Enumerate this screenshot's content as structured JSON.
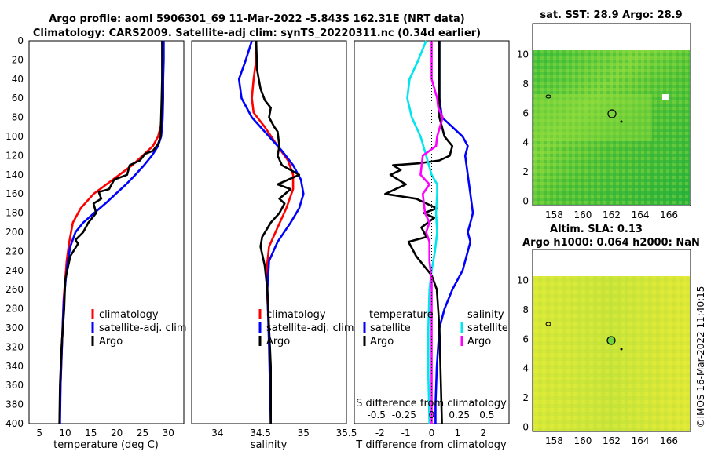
{
  "header": {
    "title_line1": "Argo profile: aoml 5906301_69 11-Mar-2022 -5.843S 162.31E (NRT data)",
    "title_line2": "Climatology: CARS2009. Satellite-adj clim: synTS_20220311.nc (0.34d earlier)",
    "timestamp": "©IMOS 16-Mar-2022 11:40:15"
  },
  "colors": {
    "climatology": "#ff0000",
    "satellite": "#0000ff",
    "argo": "#000000",
    "sal_satellite": "#00e5ee",
    "sal_argo": "#ff00ff"
  },
  "depth_axis": {
    "ylim": [
      0,
      400
    ],
    "ticks": [
      "0",
      "20",
      "40",
      "60",
      "80",
      "100",
      "120",
      "140",
      "160",
      "180",
      "200",
      "220",
      "240",
      "260",
      "280",
      "300",
      "320",
      "340",
      "360",
      "380",
      "400"
    ]
  },
  "chart_data": [
    {
      "type": "line",
      "id": "temperature",
      "xlabel": "temperature (deg C)",
      "xlim": [
        3,
        33
      ],
      "xticks": [
        "5",
        "10",
        "15",
        "20",
        "25",
        "30"
      ],
      "legend": [
        "climatology",
        "satellite-adj. clim",
        "Argo"
      ],
      "series": [
        {
          "name": "climatology",
          "x": [
            29.0,
            29.0,
            28.9,
            28.8,
            28.7,
            28.5,
            28.0,
            27.0,
            25.0,
            23.0,
            20.5,
            18.0,
            15.5,
            13.0,
            11.5,
            10.8,
            10.3,
            10.0,
            9.7,
            9.5,
            9.3,
            9.1,
            9.0,
            8.9
          ],
          "y": [
            0,
            20,
            40,
            60,
            80,
            90,
            100,
            110,
            120,
            130,
            140,
            150,
            160,
            175,
            190,
            210,
            230,
            250,
            270,
            300,
            330,
            360,
            380,
            400
          ]
        },
        {
          "name": "satellite-adj. clim",
          "x": [
            29.1,
            29.1,
            29.0,
            29.0,
            28.9,
            28.8,
            28.6,
            28.0,
            26.8,
            25.3,
            23.6,
            21.8,
            19.8,
            17.8,
            15.6,
            13.5,
            12.0,
            11.0,
            10.5,
            10.1,
            9.7,
            9.5,
            9.3,
            9.1,
            9.0
          ],
          "y": [
            0,
            20,
            40,
            60,
            80,
            90,
            100,
            110,
            120,
            130,
            140,
            150,
            160,
            170,
            180,
            190,
            200,
            215,
            230,
            250,
            275,
            300,
            330,
            360,
            400
          ]
        },
        {
          "name": "Argo",
          "x": [
            28.8,
            28.8,
            28.8,
            28.7,
            28.6,
            28.5,
            28.0,
            27.0,
            25.5,
            24.5,
            22.5,
            22.0,
            19.5,
            18.5,
            16.5,
            17.0,
            15.5,
            16.0,
            14.5,
            13.5,
            12.0,
            12.5,
            11.0,
            10.0,
            9.8,
            9.3,
            9.0,
            8.9
          ],
          "y": [
            0,
            20,
            40,
            60,
            80,
            100,
            108,
            115,
            118,
            125,
            130,
            140,
            145,
            155,
            158,
            165,
            170,
            180,
            190,
            200,
            208,
            212,
            225,
            250,
            280,
            320,
            360,
            400
          ]
        }
      ]
    },
    {
      "type": "line",
      "id": "salinity",
      "xlabel": "salinity",
      "xlim": [
        33.7,
        35.5
      ],
      "xticks": [
        "34",
        "34.5",
        "35",
        "35.5"
      ],
      "legend": [
        "climatology",
        "satellite-adj. clim",
        "Argo"
      ],
      "series": [
        {
          "name": "climatology",
          "x": [
            34.45,
            34.45,
            34.42,
            34.4,
            34.42,
            34.55,
            34.7,
            34.82,
            34.88,
            34.88,
            34.8,
            34.7,
            34.6,
            34.57,
            34.58,
            34.6,
            34.61,
            34.62,
            34.62
          ],
          "y": [
            0,
            20,
            40,
            60,
            75,
            90,
            110,
            125,
            140,
            155,
            175,
            195,
            215,
            240,
            270,
            300,
            330,
            360,
            400
          ]
        },
        {
          "name": "satellite-adj. clim",
          "x": [
            34.4,
            34.33,
            34.25,
            34.28,
            34.4,
            34.6,
            34.75,
            34.88,
            34.97,
            35.0,
            34.95,
            34.85,
            34.7,
            34.6,
            34.58,
            34.59,
            34.6,
            34.61,
            34.62
          ],
          "y": [
            0,
            20,
            40,
            60,
            80,
            100,
            115,
            130,
            145,
            160,
            175,
            190,
            210,
            230,
            260,
            290,
            320,
            360,
            400
          ]
        },
        {
          "name": "Argo",
          "x": [
            34.45,
            34.46,
            34.5,
            34.55,
            34.62,
            34.6,
            34.66,
            34.7,
            34.72,
            34.7,
            34.75,
            34.95,
            34.7,
            34.85,
            34.72,
            34.78,
            34.72,
            34.62,
            34.52,
            34.5,
            34.55,
            34.58,
            34.6,
            34.62,
            34.62
          ],
          "y": [
            0,
            30,
            50,
            62,
            70,
            80,
            90,
            95,
            110,
            120,
            130,
            140,
            150,
            155,
            165,
            170,
            180,
            190,
            205,
            215,
            235,
            260,
            300,
            340,
            400
          ]
        }
      ]
    },
    {
      "type": "line",
      "id": "differences",
      "xlabel": "T difference from climatology",
      "xlim": [
        -3,
        3
      ],
      "xticks": [
        "-2",
        "-1",
        "0",
        "1",
        "2"
      ],
      "xlabel_top": "S difference from climatology",
      "xticks_top": [
        "-0.5",
        "-0.25",
        "0",
        "0.25",
        "0.5"
      ],
      "legend_left_title": "temperature",
      "legend_left": [
        "satellite",
        "Argo"
      ],
      "legend_right_title": "salinity",
      "legend_right": [
        "satellite",
        "Argo"
      ],
      "series": [
        {
          "name": "temperature satellite",
          "x": [
            0.3,
            0.3,
            0.3,
            0.4,
            0.8,
            1.2,
            1.4,
            1.3,
            1.4,
            1.5,
            1.6,
            1.5,
            1.4,
            1.5,
            1.4,
            1.2,
            0.8,
            0.5,
            0.3,
            0.2,
            0.15,
            0.15
          ],
          "y": [
            0,
            20,
            60,
            80,
            90,
            100,
            110,
            120,
            140,
            160,
            180,
            190,
            200,
            210,
            220,
            240,
            260,
            280,
            300,
            340,
            380,
            400
          ]
        },
        {
          "name": "temperature Argo",
          "x": [
            0.3,
            0.3,
            0.3,
            0.5,
            0.8,
            0.7,
            0.3,
            -0.5,
            -1.5,
            -1.2,
            -1.6,
            -1.0,
            -1.4,
            -1.8,
            -0.6,
            -0.2,
            0.2,
            -0.3,
            0.1,
            -0.4,
            -0.2,
            -0.9,
            -0.6,
            -0.3,
            0.0,
            0.2,
            0.3,
            0.4
          ],
          "y": [
            0,
            40,
            80,
            100,
            110,
            120,
            125,
            128,
            130,
            135,
            140,
            150,
            155,
            160,
            165,
            170,
            175,
            180,
            185,
            195,
            205,
            210,
            225,
            235,
            245,
            260,
            300,
            400
          ]
        },
        {
          "name": "salinity satellite",
          "x": [
            -0.05,
            -0.12,
            -0.2,
            -0.22,
            -0.18,
            -0.1,
            -0.05,
            0.0,
            0.05,
            0.05,
            0.04,
            0.05,
            0.03,
            0.0,
            -0.02,
            -0.03,
            -0.03,
            -0.02
          ],
          "y": [
            0,
            20,
            40,
            60,
            80,
            100,
            120,
            140,
            150,
            160,
            180,
            200,
            220,
            240,
            260,
            300,
            350,
            400
          ]
        },
        {
          "name": "salinity Argo",
          "x": [
            0.0,
            0.0,
            0.05,
            0.06,
            0.1,
            0.05,
            0.04,
            -0.08,
            -0.1,
            -0.02,
            -0.08,
            -0.06,
            -0.02,
            -0.05,
            -0.02,
            -0.02,
            0.0,
            0.0,
            0.0
          ],
          "y": [
            0,
            40,
            60,
            70,
            80,
            100,
            110,
            120,
            140,
            150,
            160,
            180,
            190,
            200,
            210,
            230,
            250,
            300,
            400
          ]
        }
      ]
    },
    {
      "type": "heatmap",
      "id": "sst_map",
      "title": "sat. SST: 28.9 Argo: 28.9",
      "xticks": [
        "158",
        "160",
        "162",
        "164",
        "166"
      ],
      "yticks": [
        "0",
        "2",
        "4",
        "6",
        "8",
        "10"
      ],
      "marker": {
        "lon": 162.31,
        "lat": 5.843
      }
    },
    {
      "type": "heatmap",
      "id": "sla_map",
      "title_line1": "Altim. SLA: 0.13",
      "title_line2": "Argo h1000: 0.064 h2000: NaN",
      "xticks": [
        "158",
        "160",
        "162",
        "164",
        "166"
      ],
      "yticks": [
        "0",
        "2",
        "4",
        "6",
        "8",
        "10"
      ],
      "marker": {
        "lon": 162.31,
        "lat": 5.843
      }
    }
  ]
}
